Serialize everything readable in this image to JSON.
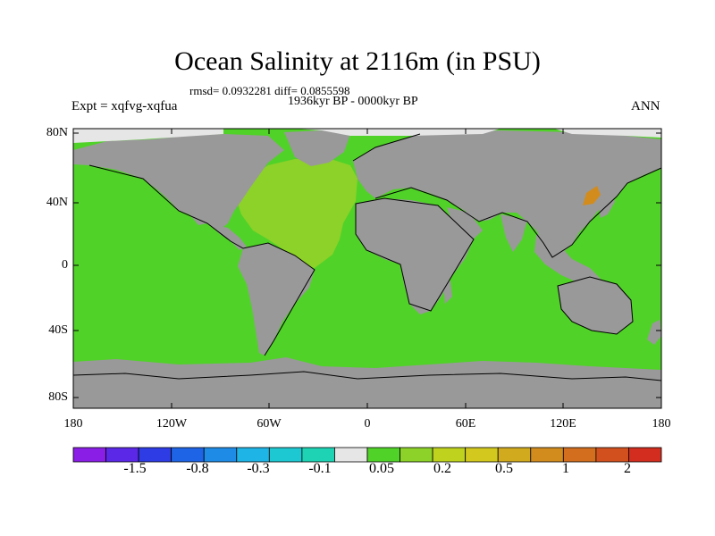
{
  "title": "Ocean Salinity at 2116m (in PSU)",
  "stats_line": "rmsd= 0.0932281 diff= 0.0855598",
  "period": "1936kyr BP - 0000kyr BP",
  "experiment": "Expt = xqfvg-xqfua",
  "season": "ANN",
  "lat_labels": [
    "80N",
    "40N",
    "0",
    "40S",
    "80S"
  ],
  "lon_labels": [
    "180",
    "120W",
    "60W",
    "0",
    "60E",
    "120E",
    "180"
  ],
  "colorbar": {
    "colors": [
      "#8a1ee6",
      "#5a28e6",
      "#2e3ce6",
      "#1e64e6",
      "#1e8ce6",
      "#1eb4e6",
      "#1ec8d2",
      "#1ed2b4",
      "#e6e6e6",
      "#50d228",
      "#8cd228",
      "#bed21e",
      "#d2c81e",
      "#d2aa1e",
      "#d28c1e",
      "#d26e1e",
      "#d2501e",
      "#d22d1e"
    ],
    "labels": [
      "-1.5",
      "-0.8",
      "-0.3",
      "-0.1",
      "0.05",
      "0.2",
      "0.5",
      "1",
      "2"
    ]
  },
  "colors": {
    "ocean": "#50d228",
    "atlantic": "#8cd228",
    "land": "#999999",
    "ice": "#e6e6e6",
    "japan_sea": "#d28c1e"
  }
}
